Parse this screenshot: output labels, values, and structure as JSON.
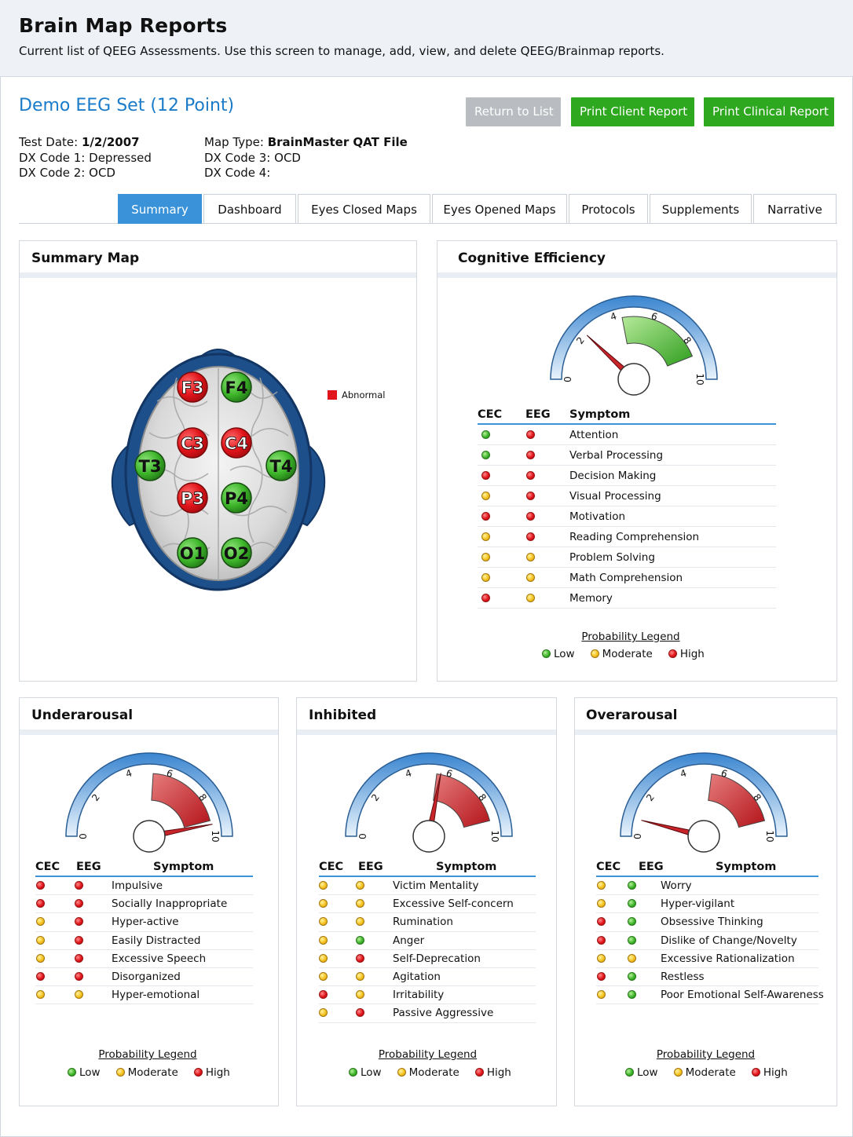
{
  "header": {
    "title": "Brain Map Reports",
    "subtitle": "Current list of QEEG Assessments. Use this screen to manage, add, view, and delete QEEG/Brainmap reports."
  },
  "report": {
    "title": "Demo EEG Set (12 Point)",
    "buttons": {
      "return": "Return to List",
      "print_client": "Print Client Report",
      "print_clinical": "Print Clinical Report"
    },
    "info": {
      "test_date_label": "Test Date:",
      "test_date": "1/2/2007",
      "dx1_label": "DX Code 1:",
      "dx1": "Depressed",
      "dx2_label": "DX Code 2:",
      "dx2": "OCD",
      "map_type_label": "Map Type:",
      "map_type": "BrainMaster QAT File",
      "dx3_label": "DX Code 3:",
      "dx3": "OCD",
      "dx4_label": "DX Code 4:",
      "dx4": ""
    }
  },
  "tabs": [
    "Summary",
    "Dashboard",
    "Eyes Closed Maps",
    "Eyes Opened Maps",
    "Protocols",
    "Supplements",
    "Narrative"
  ],
  "active_tab": "Summary",
  "colors": {
    "red": "#e0141a",
    "yellow": "#f4c21f",
    "green": "#3db52a",
    "accent": "#3a93d8",
    "link": "#1a7bc9"
  },
  "summary_map": {
    "title": "Summary Map",
    "legend": "Abnormal",
    "sites": [
      {
        "label": "F3",
        "status": "red"
      },
      {
        "label": "F4",
        "status": "green"
      },
      {
        "label": "C3",
        "status": "red"
      },
      {
        "label": "C4",
        "status": "red"
      },
      {
        "label": "T3",
        "status": "green"
      },
      {
        "label": "T4",
        "status": "green"
      },
      {
        "label": "P3",
        "status": "red"
      },
      {
        "label": "P4",
        "status": "green"
      },
      {
        "label": "O1",
        "status": "green"
      },
      {
        "label": "O2",
        "status": "green"
      }
    ]
  },
  "legend": {
    "title": "Probability Legend",
    "low": "Low",
    "moderate": "Moderate",
    "high": "High"
  },
  "table_headers": {
    "cec": "CEC",
    "eeg": "EEG",
    "symptom": "Symptom"
  },
  "gauge_ticks": [
    "0",
    "2",
    "4",
    "6",
    "8",
    "10"
  ],
  "panels": {
    "cognitive": {
      "title": "Cognitive Efficiency",
      "gauge": {
        "needle": 2.4,
        "band": [
          4.4,
          8.8
        ],
        "band_color": "green"
      },
      "rows": [
        {
          "cec": "green",
          "eeg": "red",
          "symptom": "Attention"
        },
        {
          "cec": "green",
          "eeg": "red",
          "symptom": "Verbal Processing"
        },
        {
          "cec": "red",
          "eeg": "red",
          "symptom": "Decision Making"
        },
        {
          "cec": "yellow",
          "eeg": "red",
          "symptom": "Visual Processing"
        },
        {
          "cec": "red",
          "eeg": "red",
          "symptom": "Motivation"
        },
        {
          "cec": "yellow",
          "eeg": "red",
          "symptom": "Reading Comprehension"
        },
        {
          "cec": "yellow",
          "eeg": "yellow",
          "symptom": "Problem Solving"
        },
        {
          "cec": "yellow",
          "eeg": "yellow",
          "symptom": "Math Comprehension"
        },
        {
          "cec": "red",
          "eeg": "yellow",
          "symptom": "Memory"
        }
      ]
    },
    "underarousal": {
      "title": "Underarousal",
      "gauge": {
        "needle": 9.4,
        "band": [
          5.2,
          9.2
        ],
        "band_color": "red"
      },
      "rows": [
        {
          "cec": "red",
          "eeg": "red",
          "symptom": "Impulsive"
        },
        {
          "cec": "red",
          "eeg": "red",
          "symptom": "Socially Inappropriate"
        },
        {
          "cec": "yellow",
          "eeg": "red",
          "symptom": "Hyper-active"
        },
        {
          "cec": "yellow",
          "eeg": "red",
          "symptom": "Easily Distracted"
        },
        {
          "cec": "yellow",
          "eeg": "red",
          "symptom": "Excessive Speech"
        },
        {
          "cec": "red",
          "eeg": "red",
          "symptom": "Disorganized"
        },
        {
          "cec": "yellow",
          "eeg": "yellow",
          "symptom": "Hyper-emotional"
        }
      ]
    },
    "inhibited": {
      "title": "Inhibited",
      "gauge": {
        "needle": 5.6,
        "band": [
          5.4,
          9.2
        ],
        "band_color": "red"
      },
      "rows": [
        {
          "cec": "yellow",
          "eeg": "yellow",
          "symptom": "Victim Mentality"
        },
        {
          "cec": "yellow",
          "eeg": "yellow",
          "symptom": "Excessive Self-concern"
        },
        {
          "cec": "yellow",
          "eeg": "yellow",
          "symptom": "Rumination"
        },
        {
          "cec": "yellow",
          "eeg": "green",
          "symptom": "Anger"
        },
        {
          "cec": "yellow",
          "eeg": "red",
          "symptom": "Self-Deprecation"
        },
        {
          "cec": "yellow",
          "eeg": "yellow",
          "symptom": "Agitation"
        },
        {
          "cec": "red",
          "eeg": "yellow",
          "symptom": "Irritability"
        },
        {
          "cec": "yellow",
          "eeg": "red",
          "symptom": "Passive Aggressive"
        }
      ]
    },
    "overarousal": {
      "title": "Overarousal",
      "gauge": {
        "needle": 0.8,
        "band": [
          5.4,
          9.2
        ],
        "band_color": "red"
      },
      "rows": [
        {
          "cec": "yellow",
          "eeg": "green",
          "symptom": "Worry"
        },
        {
          "cec": "yellow",
          "eeg": "green",
          "symptom": "Hyper-vigilant"
        },
        {
          "cec": "red",
          "eeg": "green",
          "symptom": "Obsessive Thinking"
        },
        {
          "cec": "red",
          "eeg": "green",
          "symptom": "Dislike of Change/Novelty"
        },
        {
          "cec": "yellow",
          "eeg": "yellow",
          "symptom": "Excessive Rationalization"
        },
        {
          "cec": "red",
          "eeg": "green",
          "symptom": "Restless"
        },
        {
          "cec": "yellow",
          "eeg": "green",
          "symptom": "Poor Emotional Self-Awareness"
        }
      ]
    }
  }
}
